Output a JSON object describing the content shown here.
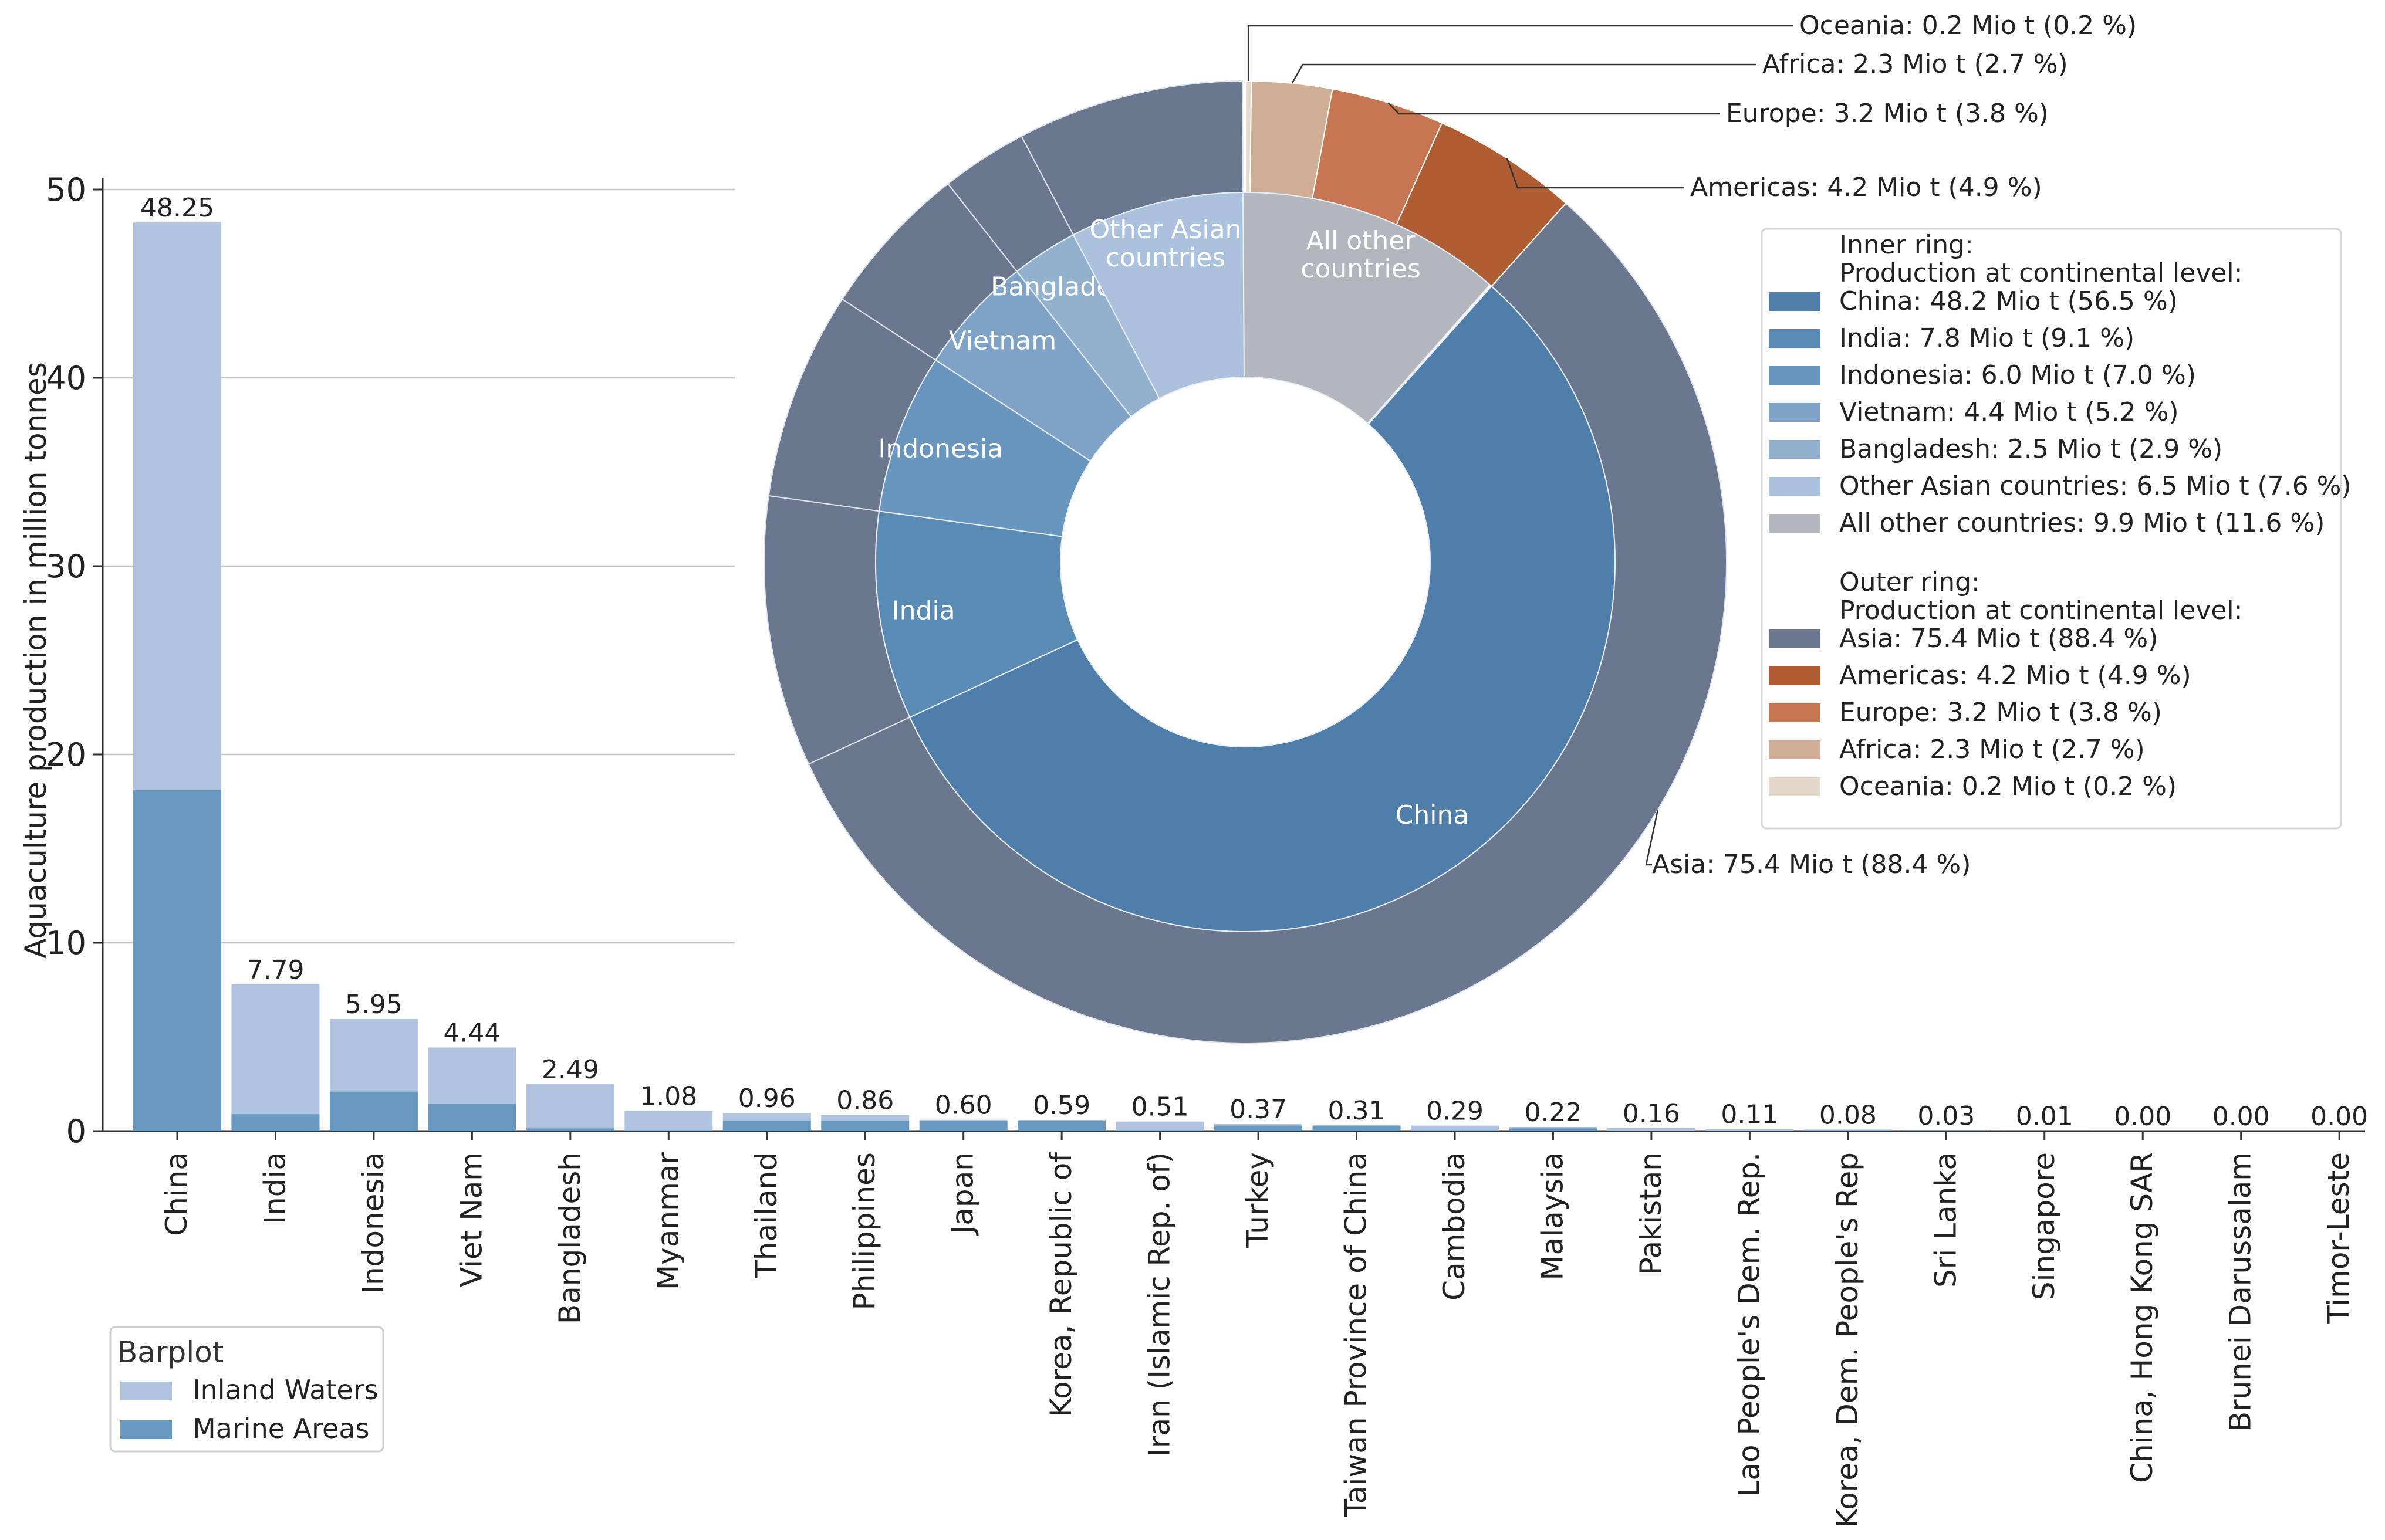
{
  "chart_data": [
    {
      "type": "bar",
      "stacked": true,
      "ylabel": "Aquaculture production in million tonnes",
      "ylim": [
        0,
        50
      ],
      "yticks": [
        0,
        10,
        20,
        30,
        40,
        50
      ],
      "grid": true,
      "categories": [
        "China",
        "India",
        "Indonesia",
        "Viet Nam",
        "Bangladesh",
        "Myanmar",
        "Thailand",
        "Philippines",
        "Japan",
        "Korea, Republic of",
        "Iran (Islamic Rep. of)",
        "Turkey",
        "Taiwan Province of China",
        "Cambodia",
        "Malaysia",
        "Pakistan",
        "Lao People's Dem. Rep.",
        "Korea, Dem. People's Rep",
        "Sri Lanka",
        "Singapore",
        "China, Hong Kong SAR",
        "Brunei Darussalam",
        "Timor-Leste"
      ],
      "totals": [
        48.25,
        7.79,
        5.95,
        4.44,
        2.49,
        1.08,
        0.96,
        0.86,
        0.6,
        0.59,
        0.51,
        0.37,
        0.31,
        0.29,
        0.22,
        0.16,
        0.11,
        0.08,
        0.03,
        0.01,
        0.0,
        0.0,
        0.0
      ],
      "total_labels": [
        "48.25",
        "7.79",
        "5.95",
        "4.44",
        "2.49",
        "1.08",
        "0.96",
        "0.86",
        "0.60",
        "0.59",
        "0.51",
        "0.37",
        "0.31",
        "0.29",
        "0.22",
        "0.16",
        "0.11",
        "0.08",
        "0.03",
        "0.01",
        "0.00",
        "0.00",
        "0.00"
      ],
      "series": [
        {
          "name": "Marine Areas",
          "color": "#6897bf",
          "values": [
            18.1,
            0.9,
            2.1,
            1.45,
            0.15,
            0.05,
            0.55,
            0.55,
            0.55,
            0.55,
            0.05,
            0.3,
            0.25,
            0.05,
            0.15,
            0.0,
            0.0,
            0.05,
            0.0,
            0.0,
            0.0,
            0.0,
            0.0
          ]
        },
        {
          "name": "Inland Waters",
          "color": "#b1c4df",
          "values": [
            30.15,
            6.89,
            3.85,
            2.99,
            2.34,
            1.03,
            0.41,
            0.31,
            0.05,
            0.04,
            0.46,
            0.07,
            0.06,
            0.24,
            0.07,
            0.16,
            0.11,
            0.03,
            0.03,
            0.01,
            0.0,
            0.0,
            0.0
          ]
        }
      ],
      "legend": {
        "title": "Barplot",
        "position": "bottom-left",
        "entries": [
          "Inland Waters",
          "Marine Areas"
        ]
      }
    },
    {
      "type": "pie",
      "subtype": "nested-donut",
      "inner_ring": {
        "title": "Inner ring:",
        "subtitle": "Production at continental level:",
        "slices": [
          {
            "label": "China",
            "value": 56.5,
            "color": "#4e7ea9",
            "legend": "China: 48.2 Mio t (56.5 %)"
          },
          {
            "label": "India",
            "value": 9.1,
            "color": "#5a8bb5",
            "legend": "India: 7.8 Mio t (9.1 %)"
          },
          {
            "label": "Indonesia",
            "value": 7.0,
            "color": "#6996be",
            "legend": "Indonesia: 6.0 Mio t (7.0 %)"
          },
          {
            "label": "Vietnam",
            "value": 5.2,
            "color": "#7ea3c6",
            "legend": "Vietnam: 4.4 Mio t (5.2 %)"
          },
          {
            "label": "Bangladesh",
            "value": 2.9,
            "color": "#92b1cf",
            "legend": "Bangladesh: 2.5 Mio t (2.9 %)"
          },
          {
            "label": "Other Asian countries",
            "label_lines": [
              "Other Asian",
              "countries"
            ],
            "value": 7.6,
            "color": "#aac2dd",
            "legend": "Other Asian countries: 6.5 Mio t (7.6 %)"
          },
          {
            "label": "All other countries",
            "label_lines": [
              "All other",
              "countries"
            ],
            "value": 11.6,
            "color": "#b3b7bd",
            "legend": "All other countries: 9.9 Mio t (11.6 %)"
          }
        ]
      },
      "outer_ring": {
        "title": "Outer ring:",
        "subtitle": "Production at continental level:",
        "slices": [
          {
            "label": "Asia",
            "value": 88.4,
            "color": "#6b768f",
            "legend": "Asia: 75.4 Mio t (88.4 %)"
          },
          {
            "label": "Americas",
            "value": 4.9,
            "color": "#b15d33",
            "legend": "Americas: 4.2 Mio t (4.9 %)"
          },
          {
            "label": "Europe",
            "value": 3.8,
            "color": "#c67751",
            "legend": "Europe: 3.2 Mio t (3.8 %)"
          },
          {
            "label": "Africa",
            "value": 2.7,
            "color": "#cfae95",
            "legend": "Africa: 2.3 Mio t (2.7 %)"
          },
          {
            "label": "Oceania",
            "value": 0.2,
            "color": "#e4d7cb",
            "legend": "Oceania: 0.2 Mio t (0.2 %)"
          }
        ],
        "asia_subdivisions": [
          56.5,
          9.1,
          7.0,
          5.2,
          2.9,
          7.6
        ]
      },
      "annotations": [
        "Oceania: 0.2 Mio t (0.2 %)",
        "Africa: 2.3 Mio t (2.7 %)",
        "Europe: 3.2 Mio t (3.8 %)",
        "Americas: 4.2 Mio t (4.9 %)",
        "Asia: 75.4 Mio t (88.4 %)"
      ],
      "legend_position": "right"
    }
  ]
}
